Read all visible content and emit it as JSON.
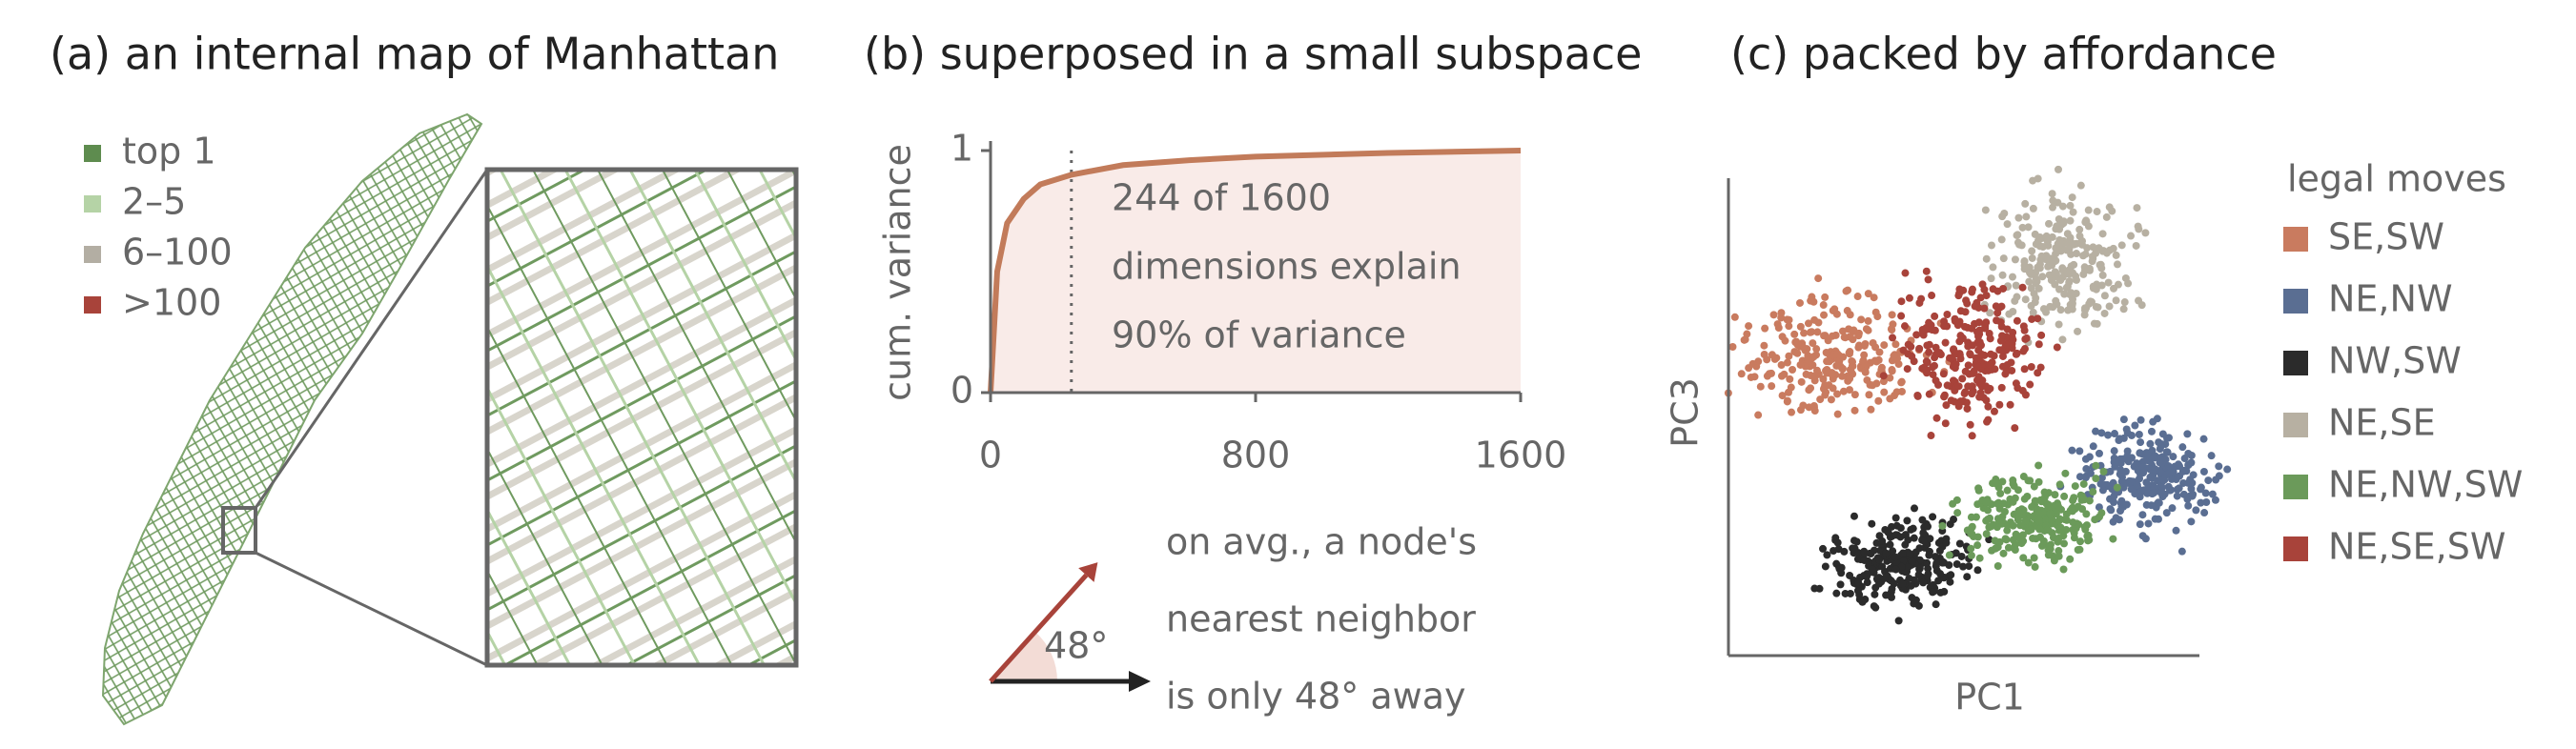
{
  "chart_data": [
    {
      "type": "map",
      "title": "(a) an internal map of Manhattan",
      "series": [
        {
          "name": "top 1",
          "color": "#5e8c4f"
        },
        {
          "name": "2–5",
          "color": "#b5d3a6"
        },
        {
          "name": "6–100",
          "color": "#b3aea3"
        },
        {
          "name": ">100",
          "color": "#a8433a"
        }
      ]
    },
    {
      "type": "line",
      "title": "(b) superposed in a small subspace",
      "ylabel": "cum. variance",
      "x": [
        0,
        20,
        50,
        100,
        150,
        244,
        400,
        600,
        800,
        1200,
        1600
      ],
      "values": [
        0,
        0.5,
        0.7,
        0.8,
        0.86,
        0.9,
        0.94,
        0.96,
        0.975,
        0.99,
        1
      ],
      "color": "#c27b5a",
      "xlim": [
        0,
        1600
      ],
      "ylim": [
        0,
        1
      ],
      "xticks": [
        0,
        800,
        1600
      ],
      "yticks": [
        0,
        1
      ],
      "marker_x": 244,
      "annotation": [
        "244 of 1600",
        "dimensions explain",
        "90% of variance"
      ],
      "angle": 48,
      "angle_label": "48°",
      "angle_note": [
        "on avg., a node's",
        "nearest neighbor",
        "is only 48° away"
      ]
    },
    {
      "type": "scatter",
      "title": "(c) packed by affordance",
      "xlabel": "PC1",
      "ylabel": "PC3",
      "legend_title": "legal moves",
      "series": [
        {
          "name": "SE,SW",
          "color": "#c97b5f"
        },
        {
          "name": "NE,NW",
          "color": "#5a6e92"
        },
        {
          "name": "NW,SW",
          "color": "#2b2b2b"
        },
        {
          "name": "NE,SE",
          "color": "#b7b0a2"
        },
        {
          "name": "NE,NW,SW",
          "color": "#6b9a5a"
        },
        {
          "name": "NE,SE,SW",
          "color": "#a8433a"
        }
      ]
    }
  ]
}
